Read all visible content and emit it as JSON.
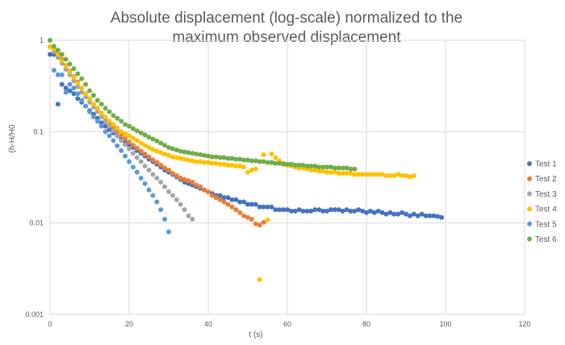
{
  "chart_data": {
    "type": "scatter",
    "title_lines": [
      "Absolute displacement (log-scale) normalized to the",
      "maximum observed displacement"
    ],
    "xlabel": "t (s)",
    "ylabel": "(h-H/H0",
    "xlim": [
      0,
      120
    ],
    "ylim": [
      0.001,
      1
    ],
    "y_scale": "log",
    "x_ticks": [
      "0",
      "20",
      "40",
      "60",
      "80",
      "100",
      "120"
    ],
    "y_ticks": [
      "1",
      "0.1",
      "0.01",
      "0.001"
    ],
    "grid": true,
    "legend_position": "right",
    "series": [
      {
        "name": "Test 1",
        "color": "#4472C4",
        "x_start": 0,
        "x_step": 1,
        "y": [
          0.7,
          0.7,
          0.2,
          0.33,
          0.3,
          0.28,
          0.26,
          0.23,
          0.21,
          0.19,
          0.17,
          0.155,
          0.14,
          0.125,
          0.115,
          0.105,
          0.097,
          0.09,
          0.083,
          0.077,
          0.072,
          0.067,
          0.062,
          0.058,
          0.054,
          0.05,
          0.047,
          0.044,
          0.041,
          0.038,
          0.036,
          0.034,
          0.032,
          0.03,
          0.028,
          0.027,
          0.026,
          0.025,
          0.024,
          0.023,
          0.022,
          0.021,
          0.02,
          0.02,
          0.019,
          0.019,
          0.018,
          0.018,
          0.017,
          0.017,
          0.016,
          0.016,
          0.016,
          0.015,
          0.015,
          0.015,
          0.015,
          0.014,
          0.014,
          0.014,
          0.014,
          0.0135,
          0.0135,
          0.014,
          0.0135,
          0.0135,
          0.0135,
          0.014,
          0.014,
          0.0135,
          0.0135,
          0.014,
          0.014,
          0.014,
          0.0135,
          0.014,
          0.0135,
          0.0135,
          0.014,
          0.0135,
          0.013,
          0.0135,
          0.013,
          0.0135,
          0.013,
          0.0125,
          0.013,
          0.0125,
          0.0125,
          0.013,
          0.0125,
          0.012,
          0.0125,
          0.012,
          0.0125,
          0.012,
          0.012,
          0.012,
          0.0118,
          0.0115
        ]
      },
      {
        "name": "Test 2",
        "color": "#ED7D31",
        "x_start": 1,
        "x_step": 1,
        "y": [
          0.8,
          0.72,
          0.62,
          0.53,
          0.46,
          0.4,
          0.35,
          0.3,
          0.26,
          0.23,
          0.2,
          0.18,
          0.16,
          0.14,
          0.125,
          0.112,
          0.1,
          0.092,
          0.084,
          0.077,
          0.071,
          0.066,
          0.061,
          0.057,
          0.053,
          0.049,
          0.046,
          0.043,
          0.04,
          0.038,
          0.035,
          0.033,
          0.031,
          0.03,
          0.029,
          0.028,
          0.026,
          0.025,
          0.023,
          0.022,
          0.02,
          0.019,
          0.018,
          0.017,
          0.016,
          0.015,
          0.014,
          0.013,
          0.012,
          0.0115,
          0.011,
          0.0098,
          0.0095,
          0.0102
        ]
      },
      {
        "name": "Test 3",
        "color": "#A5A5A5",
        "x_start": 1,
        "x_step": 1,
        "y": [
          0.75,
          0.65,
          0.56,
          0.48,
          0.42,
          0.36,
          0.31,
          0.27,
          0.24,
          0.21,
          0.185,
          0.165,
          0.145,
          0.13,
          0.115,
          0.102,
          0.09,
          0.08,
          0.072,
          0.065,
          0.058,
          0.052,
          0.047,
          0.042,
          0.038,
          0.034,
          0.031,
          0.028,
          0.025,
          0.022,
          0.02,
          0.018,
          0.016,
          0.014,
          0.012,
          0.011
        ]
      },
      {
        "name": "Test 4",
        "color": "#FFC000",
        "x_start": 0,
        "x_step": 1,
        "y": [
          0.85,
          0.8,
          0.7,
          0.6,
          0.52,
          0.45,
          0.39,
          0.34,
          0.3,
          0.26,
          0.23,
          0.2,
          0.18,
          0.16,
          0.145,
          0.13,
          0.12,
          0.11,
          0.1,
          0.095,
          0.09,
          0.085,
          0.08,
          0.075,
          0.071,
          0.067,
          0.064,
          0.061,
          0.059,
          0.057,
          0.055,
          0.053,
          0.052,
          0.051,
          0.05,
          0.049,
          0.048,
          0.047,
          0.047,
          0.046,
          0.046,
          0.045,
          0.045,
          0.044,
          0.044,
          0.043,
          0.043,
          0.042,
          0.042,
          0.041,
          0.036,
          0.038,
          0.039,
          0.0024,
          0.056,
          0.0108,
          0.057,
          0.052,
          0.048,
          0.045,
          0.043,
          0.042,
          0.041,
          0.04,
          0.04,
          0.039,
          0.038,
          0.038,
          0.037,
          0.037,
          0.036,
          0.036,
          0.036,
          0.035,
          0.035,
          0.035,
          0.035,
          0.034,
          0.034,
          0.034,
          0.034,
          0.034,
          0.034,
          0.034,
          0.034,
          0.033,
          0.033,
          0.033,
          0.034,
          0.033,
          0.033,
          0.032,
          0.033
        ]
      },
      {
        "name": "Test 5",
        "color": "#5B9BD5",
        "x_start": 1,
        "x_step": 1,
        "y": [
          0.47,
          0.42,
          0.42,
          0.27,
          0.33,
          0.3,
          0.26,
          0.22,
          0.19,
          0.165,
          0.145,
          0.13,
          0.115,
          0.1,
          0.09,
          0.08,
          0.07,
          0.062,
          0.054,
          0.047,
          0.041,
          0.036,
          0.031,
          0.027,
          0.023,
          0.02,
          0.017,
          0.014,
          0.011,
          0.008
        ]
      },
      {
        "name": "Test 6",
        "color": "#70AD47",
        "x_start": 0,
        "x_step": 1,
        "y": [
          1.0,
          0.86,
          0.78,
          0.7,
          0.62,
          0.55,
          0.49,
          0.43,
          0.38,
          0.33,
          0.28,
          0.25,
          0.22,
          0.2,
          0.18,
          0.165,
          0.15,
          0.14,
          0.13,
          0.12,
          0.115,
          0.108,
          0.102,
          0.097,
          0.092,
          0.087,
          0.083,
          0.079,
          0.075,
          0.071,
          0.067,
          0.065,
          0.063,
          0.061,
          0.06,
          0.059,
          0.058,
          0.057,
          0.056,
          0.055,
          0.054,
          0.053,
          0.053,
          0.052,
          0.052,
          0.051,
          0.051,
          0.05,
          0.05,
          0.049,
          0.049,
          0.048,
          0.048,
          0.047,
          0.047,
          0.046,
          0.046,
          0.045,
          0.045,
          0.044,
          0.044,
          0.044,
          0.043,
          0.043,
          0.043,
          0.042,
          0.042,
          0.042,
          0.041,
          0.041,
          0.041,
          0.041,
          0.04,
          0.04,
          0.04,
          0.04,
          0.039,
          0.039
        ]
      }
    ]
  }
}
